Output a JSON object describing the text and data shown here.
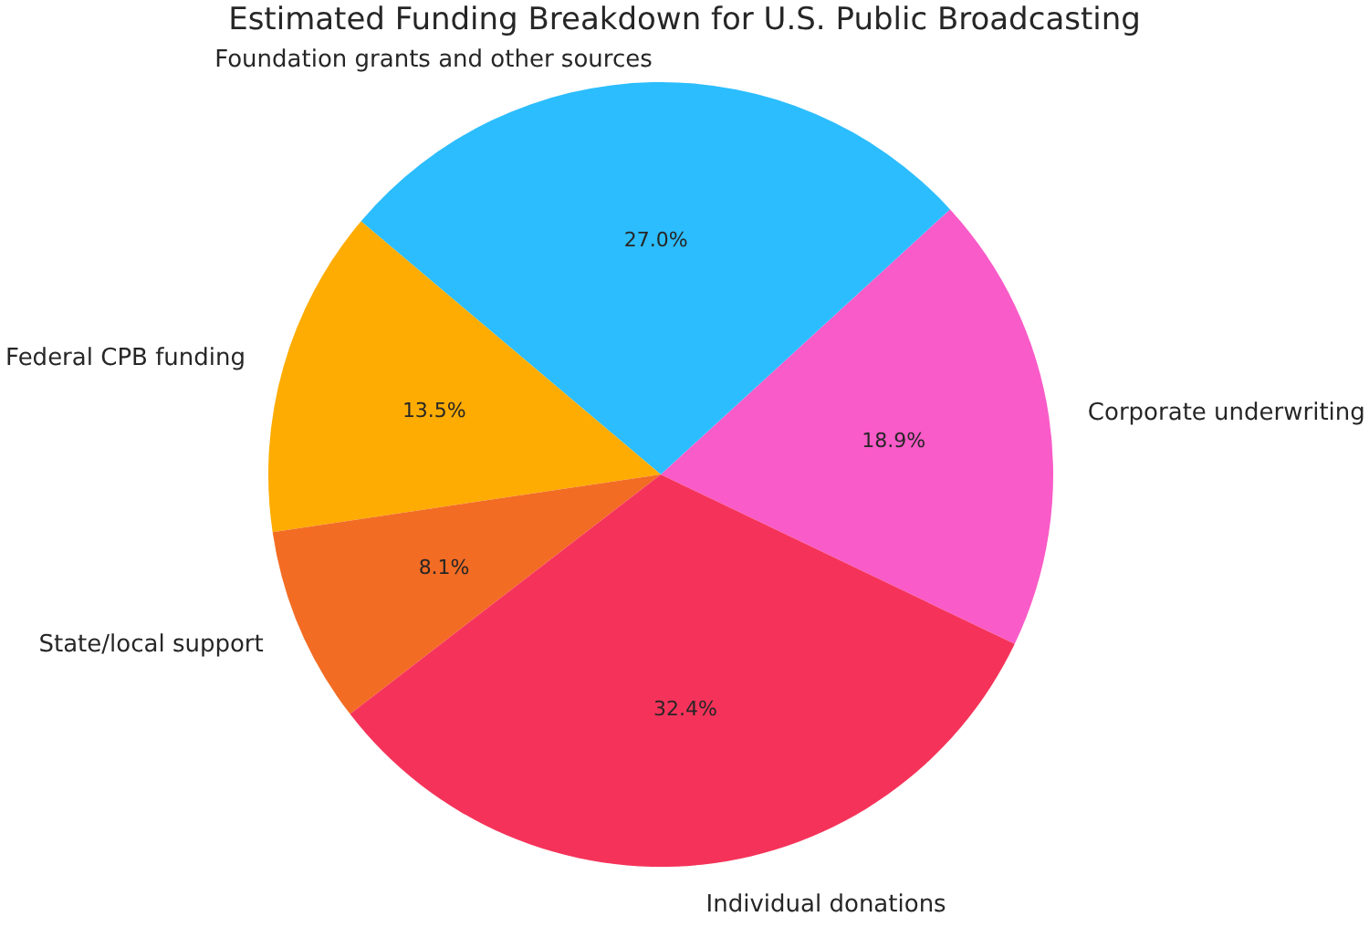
{
  "chart_data": {
    "type": "pie",
    "title": "Estimated Funding Breakdown for U.S. Public Broadcasting",
    "categories": [
      "Corporate underwriting",
      "Foundation grants and other sources",
      "Federal CPB funding",
      "State/local support",
      "Individual donations"
    ],
    "values": [
      18.9,
      27.0,
      13.5,
      8.1,
      32.4
    ],
    "colors": [
      "#f95bc8",
      "#2cbdfe",
      "#feac01",
      "#f36c23",
      "#f5335a"
    ],
    "value_labels": [
      "18.9%",
      "27.0%",
      "13.5%",
      "8.1%",
      "32.4%"
    ]
  }
}
